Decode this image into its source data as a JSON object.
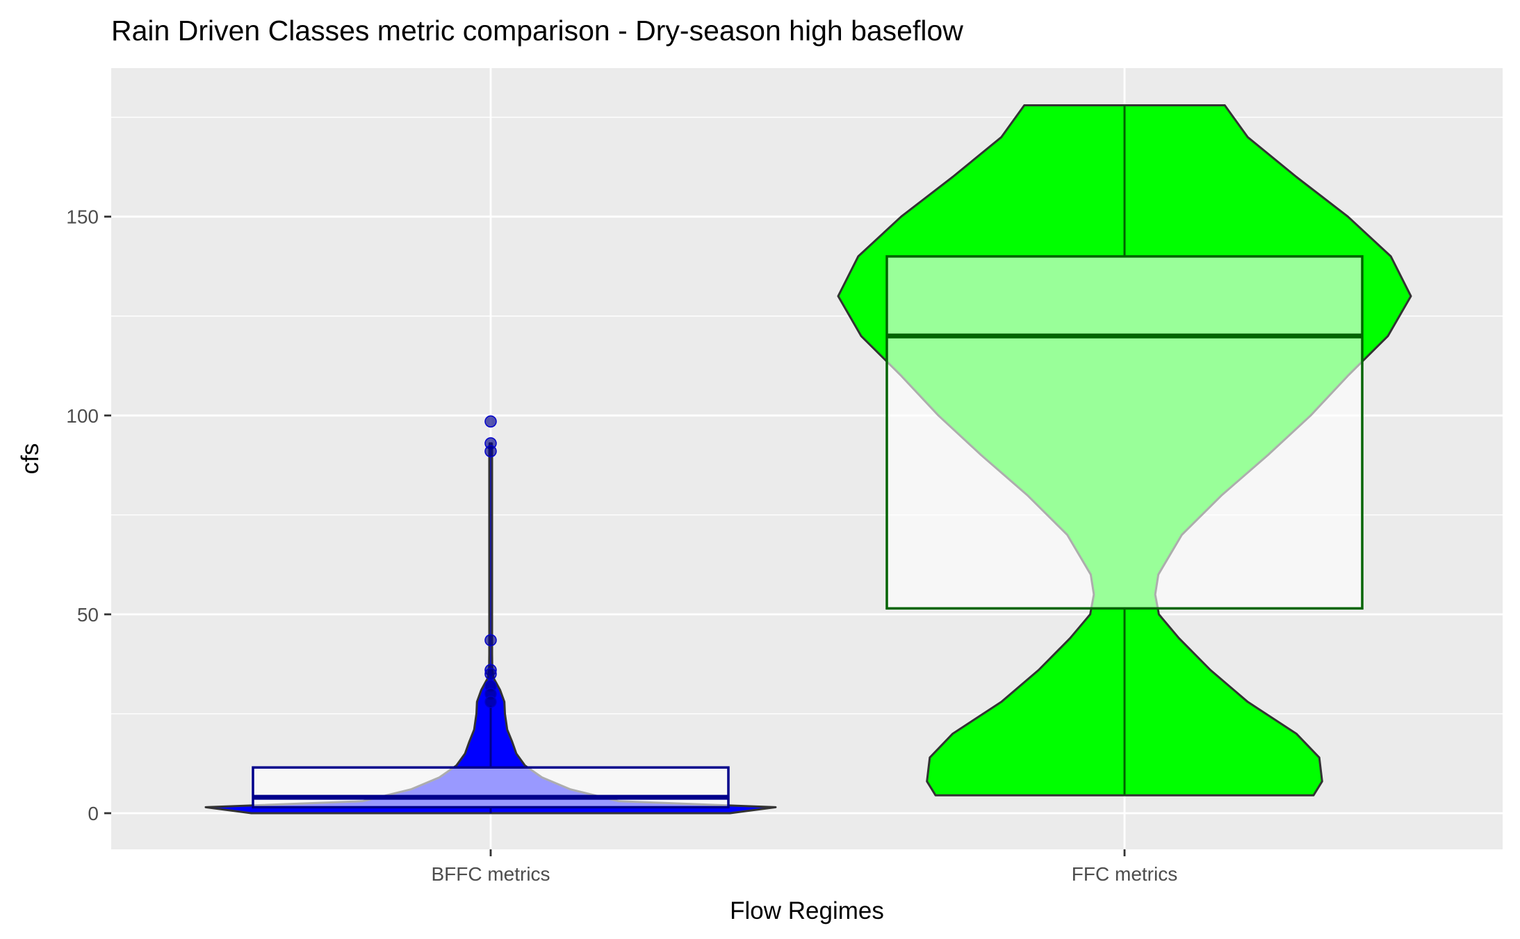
{
  "chart_data": {
    "type": "violin",
    "title": "Rain Driven Classes metric comparison - Dry-season high baseflow",
    "xlabel": "Flow Regimes",
    "ylabel": "cfs",
    "ylim": [
      -9,
      179
    ],
    "yticks": [
      0,
      50,
      100,
      150
    ],
    "grid": true,
    "legend": "none",
    "categories": [
      "BFFC metrics",
      "FFC metrics"
    ],
    "colors": {
      "panel_background": "#ebebeb",
      "grid": "#ffffff",
      "bffc_fill": "#0000ff",
      "bffc_box_border": "#00008b",
      "ffc_fill": "#00ff00",
      "ffc_box_border": "#006400",
      "violin_outline": "#333333"
    },
    "series": [
      {
        "category": "BFFC metrics",
        "box": {
          "q1": 1.5,
          "median": 4,
          "q3": 11.5,
          "whisker_low": 0,
          "whisker_high": 27
        },
        "violin_profile": [
          [
            0,
            0.84
          ],
          [
            1.5,
            1.0
          ],
          [
            3,
            0.45
          ],
          [
            6,
            0.28
          ],
          [
            9,
            0.18
          ],
          [
            12,
            0.12
          ],
          [
            15,
            0.09
          ],
          [
            18,
            0.075
          ],
          [
            21,
            0.058
          ],
          [
            25,
            0.05
          ],
          [
            28,
            0.048
          ],
          [
            31,
            0.033
          ],
          [
            34,
            0.01
          ],
          [
            36,
            0.0055
          ],
          [
            40,
            0.005
          ],
          [
            60,
            0.005
          ],
          [
            80,
            0.005
          ],
          [
            91,
            0.005
          ],
          [
            93,
            0.004
          ]
        ],
        "outliers": [
          98.5,
          93,
          91,
          43.5,
          36,
          35,
          32,
          30,
          28
        ]
      },
      {
        "category": "FFC metrics",
        "box": {
          "q1": 51.5,
          "median": 120,
          "q3": 140,
          "whisker_low": 4.5,
          "whisker_high": 178
        },
        "violin_profile": [
          [
            4.5,
            0.66
          ],
          [
            8,
            0.69
          ],
          [
            14,
            0.68
          ],
          [
            20,
            0.6
          ],
          [
            28,
            0.43
          ],
          [
            36,
            0.3
          ],
          [
            44,
            0.19
          ],
          [
            50,
            0.12
          ],
          [
            55,
            0.107
          ],
          [
            60,
            0.118
          ],
          [
            70,
            0.2
          ],
          [
            80,
            0.34
          ],
          [
            90,
            0.5
          ],
          [
            100,
            0.65
          ],
          [
            110,
            0.78
          ],
          [
            120,
            0.92
          ],
          [
            130,
            1.0
          ],
          [
            140,
            0.93
          ],
          [
            150,
            0.78
          ],
          [
            160,
            0.6
          ],
          [
            170,
            0.43
          ],
          [
            178,
            0.35
          ]
        ],
        "outliers": []
      }
    ]
  }
}
